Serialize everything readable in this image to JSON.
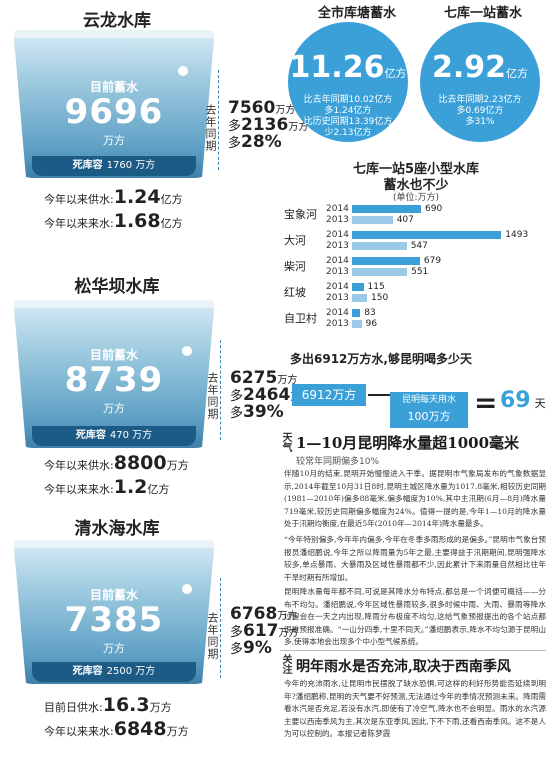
{
  "reservoirs": [
    {
      "name": "云龙水库",
      "current_label": "目前蓄水",
      "current_value": "9696",
      "current_unit": "万方",
      "dead_label": "死库容",
      "dead_value": "1760 万方",
      "side_label": "去年同期",
      "last_year": "7560",
      "last_year_unit": "万方",
      "more_prefix": "多",
      "more_amount": "2136",
      "more_unit": "万方",
      "more_pct": "28%",
      "supply_label": "今年以来供水:",
      "supply_value": "1.24",
      "supply_unit": "亿方",
      "inflow_label": "今年以来来水:",
      "inflow_value": "1.68",
      "inflow_unit": "亿方"
    },
    {
      "name": "松华坝水库",
      "current_label": "目前蓄水",
      "current_value": "8739",
      "current_unit": "万方",
      "dead_label": "死库容",
      "dead_value": "470 万方",
      "side_label": "去年同期",
      "last_year": "6275",
      "last_year_unit": "万方",
      "more_prefix": "多",
      "more_amount": "2464",
      "more_unit": "万方",
      "more_pct": "39%",
      "supply_label": "今年以来供水:",
      "supply_value": "8800",
      "supply_unit": "万方",
      "inflow_label": "今年以来来水:",
      "inflow_value": "1.2",
      "inflow_unit": "亿方"
    },
    {
      "name": "清水海水库",
      "current_label": "目前蓄水",
      "current_value": "7385",
      "current_unit": "万方",
      "dead_label": "死库容",
      "dead_value": "2500 万方",
      "side_label": "去年同期",
      "last_year": "6768",
      "last_year_unit": "万方",
      "more_prefix": "多",
      "more_amount": "617",
      "more_unit": "万方",
      "more_pct": "9%",
      "supply_label": "目前日供水:",
      "supply_value": "16.3",
      "supply_unit": "万方",
      "inflow_label": "今年以来来水:",
      "inflow_value": "6848",
      "inflow_unit": "万方"
    }
  ],
  "circles": [
    {
      "title": "全市库塘蓄水",
      "value": "11.26",
      "unit": "亿方",
      "line1": "比去年同期10.02亿方",
      "line2": "多1.24亿方",
      "line3": "比历史同期13.39亿方",
      "line4": "少2.13亿方"
    },
    {
      "title": "七库一站蓄水",
      "value": "2.92",
      "unit": "亿方",
      "line1": "比去年同期2.23亿方",
      "line2": "多0.69亿方",
      "line3": "多31%",
      "line4": ""
    }
  ],
  "chart_data": {
    "type": "bar",
    "orientation": "horizontal",
    "title": "七库一站5座小型水库",
    "subtitle": "蓄水也不少",
    "unit_note": "(单位:万方)",
    "categories": [
      "宝象河",
      "大河",
      "柴河",
      "红坡",
      "自卫村"
    ],
    "series": [
      {
        "name": "2014",
        "values": [
          690,
          1493,
          679,
          115,
          83
        ],
        "color": "#3ba0d8"
      },
      {
        "name": "2013",
        "values": [
          407,
          547,
          551,
          150,
          96
        ],
        "color": "#9cc9e6"
      }
    ],
    "xlim": [
      0,
      1500
    ]
  },
  "equation": {
    "title": "多出6912万方水,够昆明喝多少天",
    "left_value": "6912万方",
    "right_top": "昆明每天用水",
    "right_bottom": "100万方",
    "equals": "=",
    "result": "69",
    "result_unit": "天"
  },
  "article1": {
    "tag": "天气",
    "headline": "1—10月昆明降水量超1000毫米",
    "subhead": "较常年同期偏多10%",
    "p1": "伴随10月的结束,昆明开始慢慢进入干季。据昆明市气象局发布的气象数据显示,2014年截至10月31日8时,昆明主城区降水量为1017.8毫米,相较历史同期(1981—2010年)偏多88毫米,偏多幅度为10%,其中主汛期(6月—8月)降水量719毫米,较历史同期偏多幅度为24%。值得一提的是,今年1—10月的降水量处于汛期均衡度,在最近5年(2010年—2014年)降水量最多。",
    "p2": "“今年特别偏多,今年年内偏多,今年在冬季多雨形成的是偏多。”昆明市气象台预报员潘绍鹏说,今年之所以降雨量为5年之最,主要得益于汛期期间,昆明强降水较多,单点暴雨、大暴雨及区域性暴雨都不少,因此累计下来雨量自然相比往年干旱时期有所增加。",
    "p3": "昆明降水量每年都不同,可说是其降水分布特点,都总是一个词便可概括——分布不均匀。潘绍鹏说,今年区域性暴雨较多,很多时候中雨、大雨、暴雨等降水过程会在一天之内出现,降雨分布极度不均匀,这给气象预报提出的各个站点都很难预报准确。“一山分四季,十里不同天。”潘绍鹏表示,降水不均匀源于昆明山多,使得本地会出现多个中小型气候系统。"
  },
  "article2": {
    "tag": "关注",
    "headline": "明年雨水是否充沛,取决于西南季风",
    "p1": "今年的充沛雨水,让昆明市民摆脱了缺水恐惧,可这样的利好形势能否延续到明年?潘绍鹏称,昆明的天气要不好预测,无法通过今年的季情况预测未来。降雨需看水汽是否充足,若没有水汽,即使有了冷空气,降水也不会明显。雨水的水汽源主要以西南季风为主,其次是东亚季风,因此,下不下雨,还看西南季风。这不是人为可以控制的。本报记者陈梦霞"
  }
}
